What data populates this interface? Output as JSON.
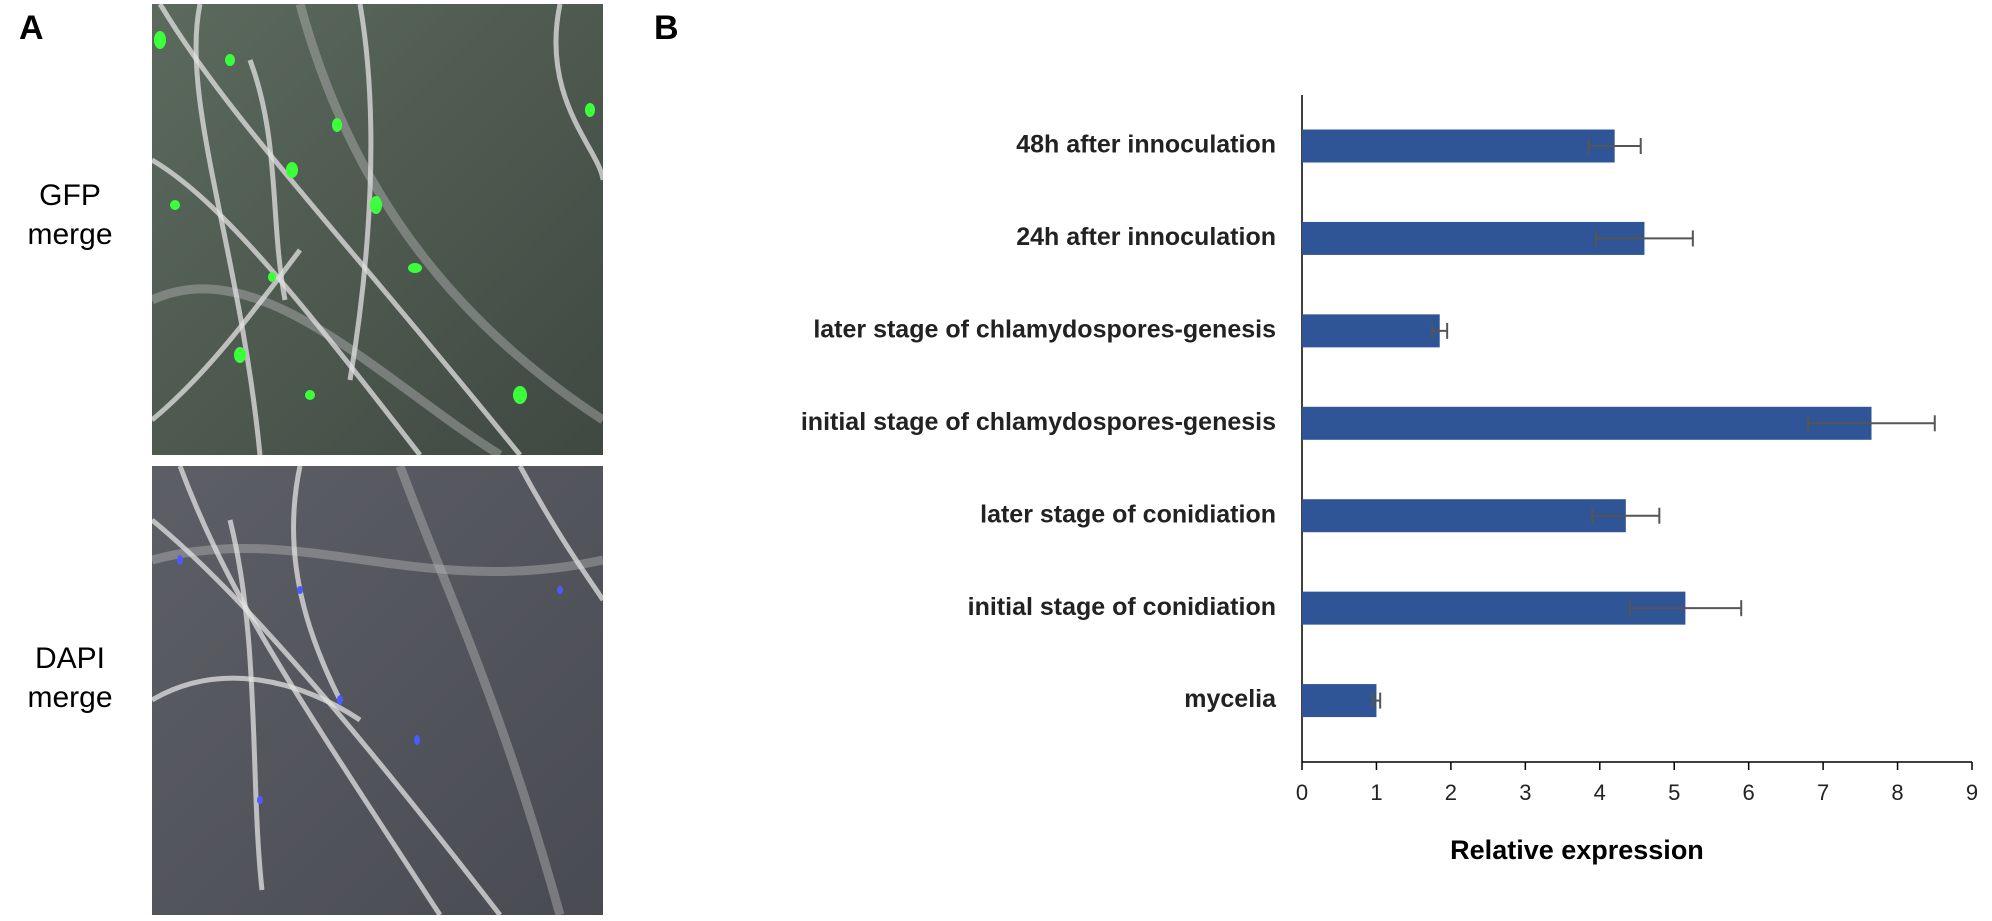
{
  "panels": {
    "a": {
      "label": "A",
      "images": [
        {
          "caption": [
            "GFP",
            "merge"
          ]
        },
        {
          "caption": [
            "DAPI",
            "merge"
          ]
        }
      ]
    },
    "b": {
      "label": "B"
    }
  },
  "chart_data": {
    "type": "bar",
    "orientation": "horizontal",
    "x_label": "Relative expression",
    "categories": [
      "48h after innoculation",
      "24h after innoculation",
      "later stage of chlamydospores-genesis",
      "initial stage of chlamydospores-genesis",
      "later stage of conidiation",
      "initial stage of conidiation",
      "mycelia"
    ],
    "values": [
      4.2,
      4.6,
      1.85,
      7.65,
      4.35,
      5.15,
      1.0
    ],
    "error": [
      0.35,
      0.65,
      0.1,
      0.85,
      0.45,
      0.75,
      0.05
    ],
    "color": "#2f5597",
    "xlim": [
      0,
      9
    ],
    "xticks": [
      0,
      1,
      2,
      3,
      4,
      5,
      6,
      7,
      8,
      9
    ]
  }
}
